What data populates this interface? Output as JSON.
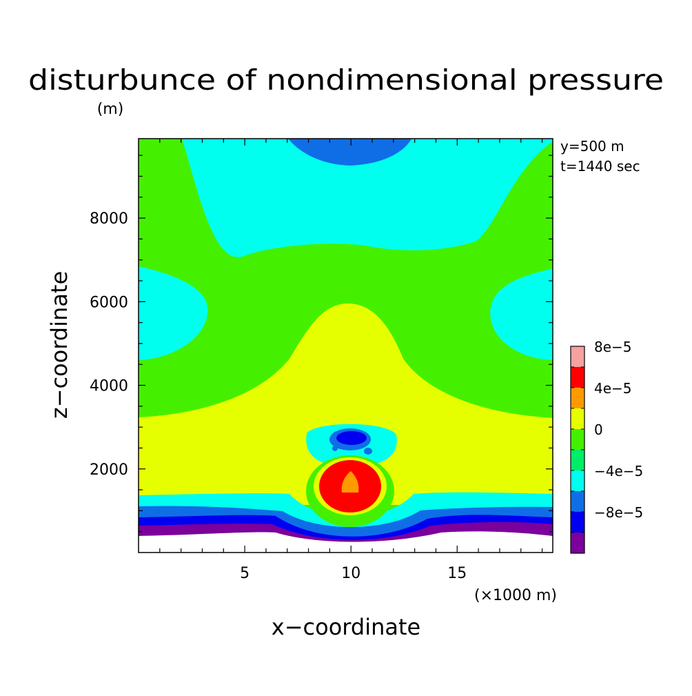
{
  "chart_data": {
    "type": "heatmap",
    "title": "disturbunce of nondimensional pressure",
    "y_unit": "(m)",
    "x_unit": "(×1000 m)",
    "xlabel": "x−coordinate",
    "ylabel": "z−coordinate",
    "annotations": [
      "y=500 m",
      "t=1440 sec"
    ],
    "xlim": [
      0,
      19.5
    ],
    "ylim": [
      0,
      9900
    ],
    "x_ticks": [
      5,
      10,
      15
    ],
    "x_tick_labels": [
      "5",
      "10",
      "15"
    ],
    "y_ticks": [
      2000,
      4000,
      6000,
      8000
    ],
    "y_tick_labels": [
      "2000",
      "4000",
      "6000",
      "8000"
    ],
    "colorbar": {
      "levels": [
        -0.0001,
        -8e-05,
        -6e-05,
        -4e-05,
        -2e-05,
        0,
        2e-05,
        4e-05,
        6e-05,
        8e-05,
        0.0001
      ],
      "colors": [
        "#7b009c",
        "#0000f0",
        "#0f6ee6",
        "#00ffee",
        "#00ee66",
        "#44f000",
        "#e6ff00",
        "#ff9900",
        "#ff0000",
        "#f7a0a0"
      ],
      "tick_labels": [
        "8e−5",
        "4e−5",
        "0",
        "−4e−5",
        "−8e−5"
      ]
    },
    "terrain_height_m": {
      "x": [
        0,
        4,
        6,
        8,
        9,
        9.8,
        10.2,
        11,
        12,
        13.5,
        15,
        17,
        19.5
      ],
      "z": [
        100,
        350,
        400,
        330,
        170,
        120,
        120,
        180,
        330,
        420,
        450,
        430,
        400
      ]
    },
    "regions": [
      {
        "name": "background",
        "value": 1e-05
      },
      {
        "name": "upper-negative-band",
        "value": -3e-05
      },
      {
        "name": "side-negative-left",
        "value": -3e-05
      },
      {
        "name": "side-negative-right",
        "value": -3e-05
      },
      {
        "name": "positive-plume",
        "value": 3e-05
      },
      {
        "name": "upper-low-cell",
        "value": -5e-05
      },
      {
        "name": "near-ground-gradient",
        "value": -0.0001
      },
      {
        "name": "positive-bubble",
        "value": 7e-05
      },
      {
        "name": "negative-bubble",
        "value": -7e-05
      }
    ]
  }
}
